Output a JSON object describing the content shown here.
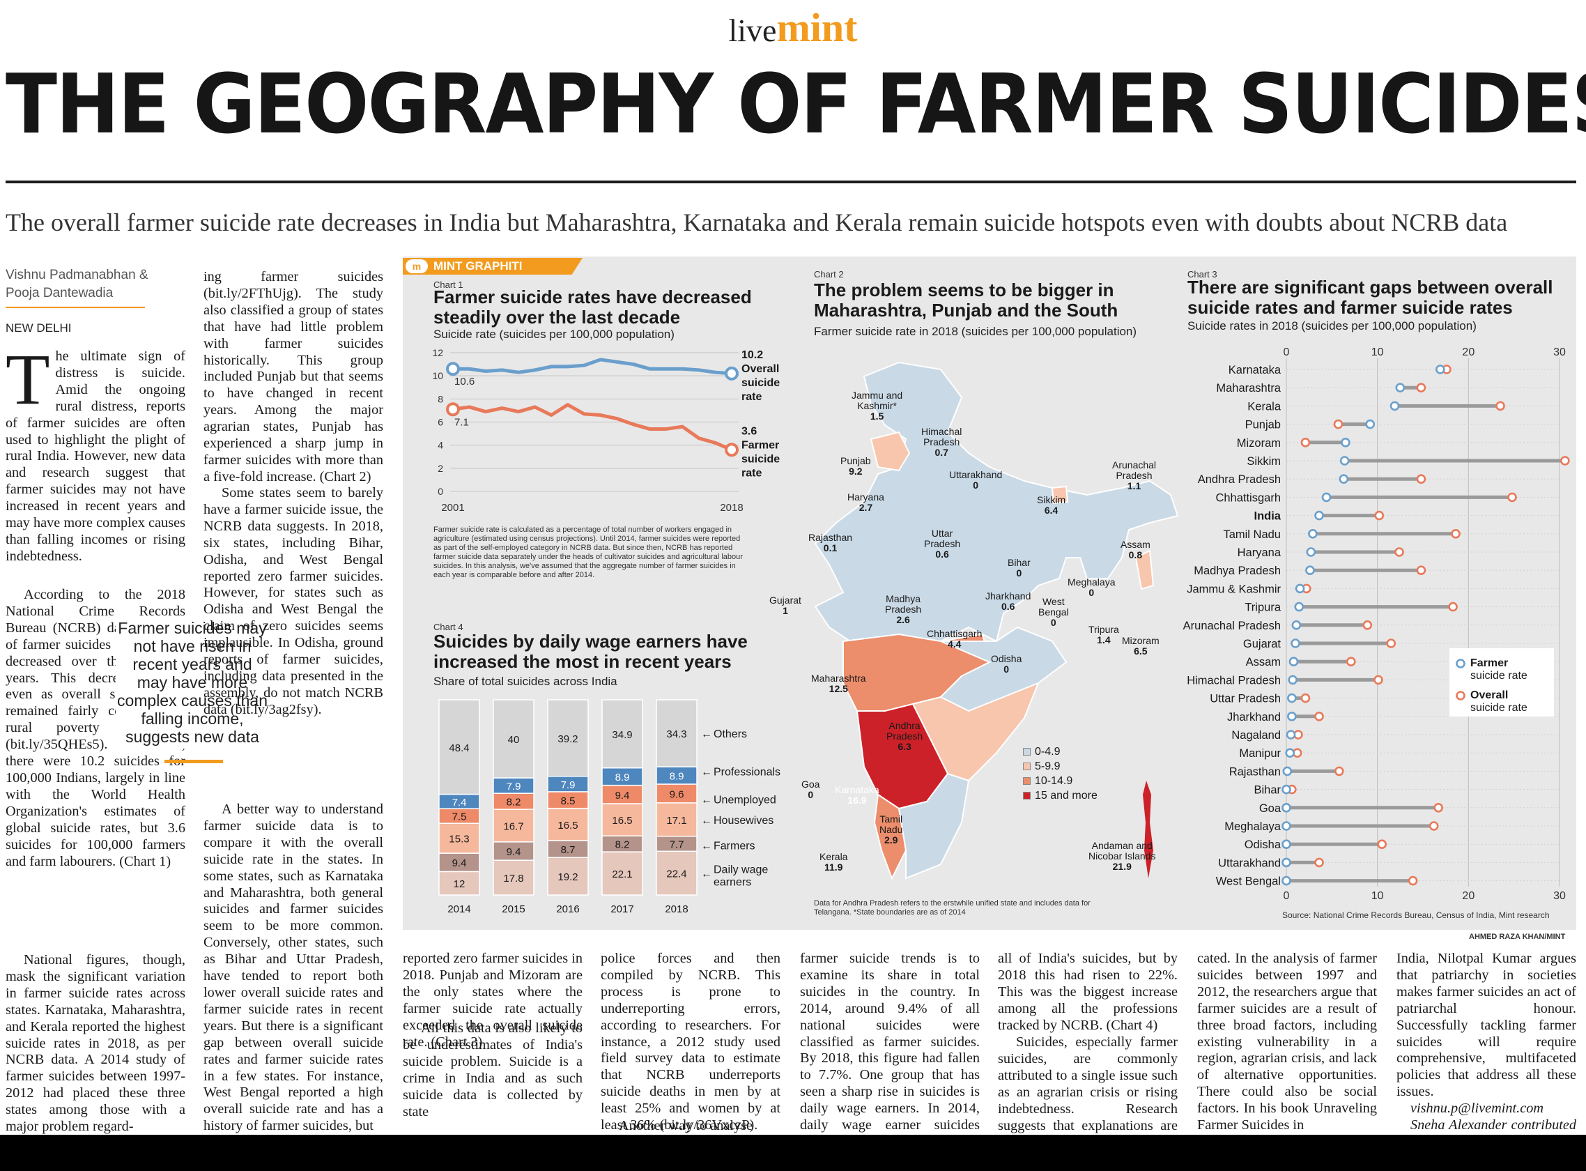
{
  "masthead": {
    "live": "live",
    "mint": "mint"
  },
  "headline": "THE GEOGRAPHY OF FARMER SUICIDES",
  "standfirst": "The overall farmer suicide rate decreases in India but Maharashtra, Karnataka and Kerala remain suicide hotspots even with doubts about NCRB data",
  "byline": {
    "author1": "Vishnu Padmanabhan &",
    "author2": "Pooja Dantewadia",
    "dateline": "NEW DELHI"
  },
  "pullquote": "Farmer suicides may not have risen in recent years and may have more complex causes than falling income, suggests new data",
  "article": {
    "col1_top": "he ultimate sign of distress is suicide. Amid the ongoing rural distress, reports of farmer suicides are often used to highlight the plight of rural India. However, new data and research suggest that farmer suicides may not have increased in recent years and may have more complex causes than falling incomes or rising indebtedness.",
    "col1_dropcap": "T",
    "col1_mid": "According to the 2018 National Crime Records Bureau (NCRB) data, the rate of farmer suicides in India has decreased over the last few years. This decrease comes even as overall suicide rates remained fairly constant and rural poverty shot up (bit.ly/35QHEs5). In 2018, there were 10.2 suicides for 100,000 Indians, largely in line with the World Health Organization's estimates of global suicide rates, but 3.6 suicides for 100,000 farmers and farm labourers. (Chart 1)",
    "col1_bottom": "National figures, though, mask the significant variation in farmer suicide rates across states. Karnataka, Maharashtra, and Kerala reported the highest suicide rates in 2018, as per NCRB data. A 2014 study of farmer suicides between 1997-2012 had placed these three states among those with a major problem regard-",
    "col2": "ing farmer suicides (bit.ly/2FThUjg). The study also classified a group of states that have had little problem with farmer suicides historically. This group included Punjab but that seems to have changed in recent years. Among the major agrarian states, Punjab has experienced a sharp jump in farmer suicides with more than a five-fold increase. (Chart 2)",
    "col2_b": "Some states seem to barely have a farmer suicide issue, the NCRB data suggests. In 2018, six states, including Bihar, Odisha, and West Bengal reported zero farmer suicides. However, for states such as Odisha and West Bengal the claim of zero suicides seems implausible. In Odisha, ground reports of farmer suicides, including data presented in the assembly, do not match NCRB data (bit.ly/3ag2fsy).",
    "col2_c": "A better way to understand farmer suicide data is to compare it with the overall suicide rate in the states. In some states, such as Karnataka and Maharashtra, both general suicides and farmer suicides seem to be more common. Conversely, other states, such as Bihar and Uttar Pradesh, have tended to report both lower overall suicide rates and farmer suicide rates in recent years. But there is a significant gap between overall suicide rates and farmer suicide rates in a few states. For instance, West Bengal reported a high overall suicide rate and has a history of farmer suicides, but",
    "b1": "reported zero farmer suicides in 2018. Punjab and Mizoram are the only states where the farmer suicide rate actually exceeded the overall suicide rate. (Chart 3)",
    "b1_b": "All this data is also likely to be underestimates of India's suicide problem. Suicide is a crime in India and as such suicide data is collected by state",
    "b2": "police forces and then compiled by NCRB. This process is prone to underreporting errors, according to researchers. For instance, a 2012 study used field survey data to estimate that NCRB underreports suicide deaths in men by at least 25% and women by at least 36% (bit.ly/36VxczP).",
    "b2_b": "Another way to analyse",
    "b3": "farmer suicide trends is to examine its share in total suicides in the country. In 2014, around 9.4% of all national suicides were classified as farmer suicides. By 2018, this figure had fallen to 7.7%. One group that has seen a sharp rise in suicides is daily wage earners. In 2014, daily wage earner suicides accounted for just 12% of",
    "b4": "all of India's suicides, but by 2018 this had risen to 22%. This was the biggest increase among all the professions tracked by NCRB. (Chart 4)",
    "b4_b": "Suicides, especially farmer suicides, are commonly attributed to a single issue such as an agrarian crisis or rising indebtedness. Research suggests that explanations are more compli-",
    "b5": "cated. In the analysis of farmer suicides between 1997 and 2012, the researchers argue that farmer suicides are a result of three broad factors, including existing vulnerability in a region, agrarian crisis, and lack of alternative opportunities. There could also be social factors. In his book Unraveling Farmer Suicides in",
    "b6": "India, Nilotpal Kumar argues that patriarchy in societies makes farmer suicides an act of patriarchal honour. Successfully tackling farmer suicides will require comprehensive, multifaceted policies that address all these issues.",
    "b6_email": "vishnu.p@livemint.com",
    "b6_contrib": "Sneha Alexander contributed to this story."
  },
  "graphic": {
    "badge": "MINT GRAPHITI",
    "badge_m": "m",
    "credit": "AHMED RAZA KHAN/MINT",
    "source": "Source: National Crime Records Bureau, Census of India, Mint research",
    "colors": {
      "farmer": "#e8795a",
      "overall": "#6a9fcc",
      "map_base": "#c9d9e6",
      "dark_red": "#cc2128"
    }
  },
  "chart_data": [
    {
      "id": "chart1",
      "type": "line",
      "chart_no": "Chart 1",
      "title": "Farmer suicide rates have decreased steadily over the last decade",
      "subtitle": "Suicide rate (suicides per 100,000 population)",
      "x": [
        2001,
        2002,
        2003,
        2004,
        2005,
        2006,
        2007,
        2008,
        2009,
        2010,
        2011,
        2012,
        2013,
        2014,
        2015,
        2016,
        2017,
        2018
      ],
      "x_tick_labels": [
        "2001",
        "2018"
      ],
      "ylim": [
        0,
        12
      ],
      "yticks": [
        "0",
        "2",
        "4",
        "6",
        "8",
        "10",
        "12"
      ],
      "series": [
        {
          "name": "Overall suicide rate",
          "values": [
            10.6,
            10.6,
            10.4,
            10.5,
            10.3,
            10.5,
            10.8,
            10.8,
            10.9,
            11.4,
            11.2,
            11.0,
            10.6,
            10.6,
            10.6,
            10.5,
            10.3,
            10.2
          ],
          "start_label": "10.6",
          "end_label_value": "10.2",
          "end_label_text": "Overall suicide rate"
        },
        {
          "name": "Farmer suicide rate",
          "values": [
            7.1,
            7.3,
            6.9,
            7.2,
            6.9,
            7.3,
            6.6,
            7.5,
            6.7,
            6.6,
            6.3,
            5.8,
            5.4,
            5.4,
            5.6,
            4.6,
            4.2,
            3.6
          ],
          "start_label": "7.1",
          "end_label_value": "3.6",
          "end_label_text": "Farmer suicide rate"
        }
      ],
      "note": "Farmer suicide rate is calculated as a percentage of total number of workers engaged in agriculture (estimated using census projections). Until 2014, farmer suicides were reported as part of the self-employed category in NCRB data. But since then, NCRB has reported farmer suicide data separately under the heads of cultivator suicides and agricultural labour suicides. In this analysis, we've assumed that the aggregate number of farmer suicides in each year is comparable before and after 2014."
    },
    {
      "id": "chart4",
      "type": "bar",
      "chart_no": "Chart 4",
      "title": "Suicides by daily wage earners have increased the most in recent years",
      "subtitle": "Share of total suicides across India",
      "categories": [
        "2014",
        "2015",
        "2016",
        "2017",
        "2018"
      ],
      "series": [
        {
          "name": "Daily wage earners",
          "values": [
            12,
            17.8,
            19.2,
            22.1,
            22.4
          ],
          "color": "#e5c7bc"
        },
        {
          "name": "Farmers",
          "values": [
            9.4,
            9.4,
            8.7,
            8.2,
            7.7
          ],
          "color": "#b4938a"
        },
        {
          "name": "Housewives",
          "values": [
            15.3,
            16.7,
            16.5,
            16.5,
            17.1
          ],
          "color": "#f6b89c"
        },
        {
          "name": "Unemployed",
          "values": [
            7.5,
            8.2,
            8.5,
            9.4,
            9.6
          ],
          "color": "#ef8a68"
        },
        {
          "name": "Professionals",
          "values": [
            7.4,
            7.9,
            7.9,
            8.9,
            8.9
          ],
          "color": "#4e86be"
        },
        {
          "name": "Others",
          "values": [
            48.4,
            40,
            39.2,
            34.9,
            34.3
          ],
          "color": "#d6d6d6"
        }
      ],
      "legend_labels": [
        "Others",
        "Professionals",
        "Unemployed",
        "Housewives",
        "Farmers",
        "Daily wage earners"
      ]
    },
    {
      "id": "chart2",
      "type": "map",
      "chart_no": "Chart 2",
      "title": "The problem seems to be bigger in Maharashtra, Punjab and the South",
      "subtitle": "Farmer suicide rate in 2018 (suicides per 100,000 population)",
      "legend": [
        {
          "label": "0-4.9",
          "color": "#c9d9e6"
        },
        {
          "label": "5-9.9",
          "color": "#f7c6ad"
        },
        {
          "label": "10-14.9",
          "color": "#ec8d6b"
        },
        {
          "label": "15 and more",
          "color": "#cc2128"
        }
      ],
      "regions": [
        {
          "name": "Jammu and Kashmir*",
          "value": "1.5"
        },
        {
          "name": "Himachal Pradesh",
          "value": "0.7"
        },
        {
          "name": "Punjab",
          "value": "9.2"
        },
        {
          "name": "Haryana",
          "value": "2.7"
        },
        {
          "name": "Uttarakhand",
          "value": "0"
        },
        {
          "name": "Arunachal Pradesh",
          "value": "1.1"
        },
        {
          "name": "Sikkim",
          "value": "6.4"
        },
        {
          "name": "Assam",
          "value": "0.8"
        },
        {
          "name": "Rajasthan",
          "value": "0.1"
        },
        {
          "name": "Uttar Pradesh",
          "value": "0.6"
        },
        {
          "name": "Bihar",
          "value": "0"
        },
        {
          "name": "Meghalaya",
          "value": "0"
        },
        {
          "name": "Gujarat",
          "value": "1"
        },
        {
          "name": "Madhya Pradesh",
          "value": "2.6"
        },
        {
          "name": "Jharkhand",
          "value": "0.6"
        },
        {
          "name": "West Bengal",
          "value": "0"
        },
        {
          "name": "Tripura",
          "value": "1.4"
        },
        {
          "name": "Mizoram",
          "value": "6.5"
        },
        {
          "name": "Chhattisgarh",
          "value": "4.4"
        },
        {
          "name": "Odisha",
          "value": "0"
        },
        {
          "name": "Maharashtra",
          "value": "12.5"
        },
        {
          "name": "Andhra Pradesh",
          "value": "6.3"
        },
        {
          "name": "Goa",
          "value": "0"
        },
        {
          "name": "Karnataka",
          "value": "16.9"
        },
        {
          "name": "Tamil Nadu",
          "value": "2.9"
        },
        {
          "name": "Kerala",
          "value": "11.9"
        },
        {
          "name": "Andaman and Nicobar Islands",
          "value": "21.9"
        }
      ],
      "note": "Data for Andhra Pradesh refers to the erstwhile unified state and includes data for Telangana. *State boundaries are as of 2014"
    },
    {
      "id": "chart3",
      "type": "scatter",
      "chart_no": "Chart 3",
      "title": "There are significant gaps between overall suicide rates and farmer suicide rates",
      "subtitle": "Suicide rates in 2018 (suicides per 100,000 population)",
      "xlim": [
        0,
        30
      ],
      "xticks": [
        "0",
        "10",
        "20",
        "30"
      ],
      "legend": [
        "Farmer suicide rate",
        "Overall suicide rate"
      ],
      "states": [
        "Karnataka",
        "Maharashtra",
        "Kerala",
        "Punjab",
        "Mizoram",
        "Sikkim",
        "Andhra Pradesh",
        "Chhattisgarh",
        "India",
        "Tamil Nadu",
        "Haryana",
        "Madhya Pradesh",
        "Jammu & Kashmir",
        "Tripura",
        "Arunachal Pradesh",
        "Gujarat",
        "Assam",
        "Himachal Pradesh",
        "Uttar Pradesh",
        "Jharkhand",
        "Nagaland",
        "Manipur",
        "Rajasthan",
        "Bihar",
        "Goa",
        "Meghalaya",
        "Odisha",
        "Uttarakhand",
        "West Bengal"
      ],
      "series": [
        {
          "name": "Farmer suicide rate",
          "values": [
            16.9,
            12.5,
            11.9,
            9.2,
            6.5,
            6.4,
            6.3,
            4.4,
            3.6,
            2.9,
            2.7,
            2.6,
            1.5,
            1.4,
            1.1,
            1,
            0.8,
            0.7,
            0.6,
            0.6,
            0.5,
            0.4,
            0.1,
            0,
            0,
            0,
            0,
            0,
            0
          ]
        },
        {
          "name": "Overall suicide rate",
          "values": [
            17.6,
            14.8,
            23.5,
            5.7,
            2.1,
            30.6,
            14.8,
            24.8,
            10.2,
            18.6,
            12.4,
            14.8,
            2.2,
            18.3,
            8.9,
            11.5,
            7.1,
            10.1,
            2.1,
            3.6,
            1.3,
            1.2,
            5.8,
            0.6,
            16.7,
            16.2,
            10.5,
            3.6,
            13.9
          ]
        }
      ],
      "highlight": "India"
    }
  ]
}
